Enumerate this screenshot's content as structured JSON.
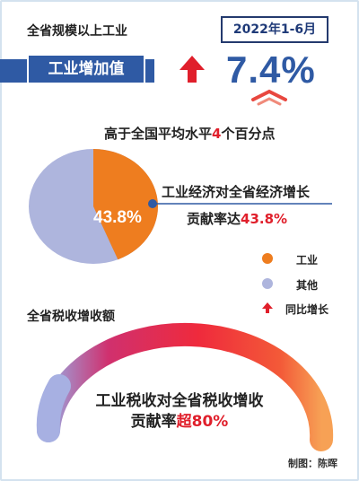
{
  "header": {
    "title": "全省规模以上工业",
    "period": "2022年1-6月"
  },
  "growth": {
    "label": "工业增加值",
    "value": "7.4%",
    "arrow_color": "#e01f2b",
    "claim_prefix": "高于全国平均水平",
    "claim_number": "4",
    "claim_suffix": "个百分点"
  },
  "contribution": {
    "line1": "工业经济对全省经济增长",
    "line2_prefix": "贡献率达",
    "line2_value": "43.8%",
    "pie_label": "43.8%"
  },
  "legend": {
    "industry": "工业",
    "other": "其他",
    "growth": "同比增长",
    "industry_color": "#ee7d1f",
    "other_color": "#aeb5dd",
    "growth_color": "#e01f2b"
  },
  "tax": {
    "title": "全省税收增收额",
    "line1": "工业税收对全省税收增收",
    "line2_prefix": "贡献率",
    "line2_value": "超80%"
  },
  "credit": "制图：陈晖",
  "chart_data": {
    "type": "pie",
    "title": "",
    "slices": [
      {
        "name": "工业",
        "value": 43.8
      },
      {
        "name": "其他",
        "value": 56.2
      }
    ],
    "legend": "right"
  }
}
